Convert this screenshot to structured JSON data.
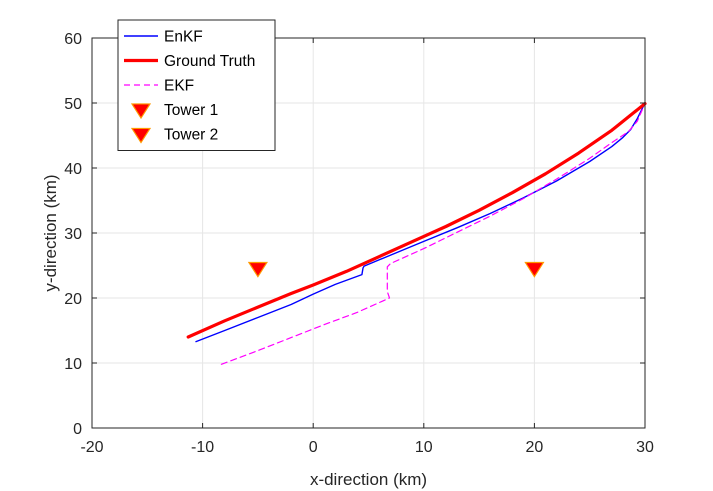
{
  "chart_data": {
    "type": "line",
    "xlabel": "x-direction (km)",
    "ylabel": "y-direction (km)",
    "xlim": [
      -20,
      30
    ],
    "ylim": [
      0,
      60
    ],
    "xticks": [
      -20,
      -10,
      0,
      10,
      20,
      30
    ],
    "yticks": [
      0,
      10,
      20,
      30,
      40,
      50,
      60
    ],
    "grid": true,
    "legend_position": "top-left",
    "series": [
      {
        "name": "EnKF",
        "color": "#0000ff",
        "style": "solid",
        "x": [
          -10.6,
          -8,
          -5,
          -2,
          0,
          2,
          4.4,
          4.5,
          4.6,
          7,
          10,
          13,
          16,
          19,
          22,
          25,
          27,
          28,
          28.7,
          29.3,
          30
        ],
        "y": [
          13.3,
          15.0,
          17.0,
          19.0,
          20.6,
          22.1,
          23.6,
          24.6,
          24.9,
          26.6,
          28.7,
          30.8,
          33.0,
          35.4,
          38.0,
          41.0,
          43.3,
          44.7,
          45.9,
          47.6,
          50.0
        ]
      },
      {
        "name": "Ground Truth",
        "color": "#ff0000",
        "style": "solid-thick",
        "x": [
          -11.3,
          -8,
          -5,
          -2,
          0,
          3,
          6,
          9,
          12,
          15,
          18,
          21,
          24,
          27,
          30
        ],
        "y": [
          14.0,
          16.5,
          18.6,
          20.7,
          22.0,
          24.1,
          26.4,
          28.7,
          31.0,
          33.5,
          36.2,
          39.1,
          42.3,
          45.8,
          49.9
        ]
      },
      {
        "name": "EKF",
        "color": "#ff00ff",
        "style": "dashed",
        "x": [
          -8.3,
          -5,
          -2,
          1,
          4,
          6.9,
          6.7,
          6.7,
          7.0,
          10,
          13,
          16,
          19,
          22,
          25,
          27,
          28.5,
          29.3,
          30
        ],
        "y": [
          9.8,
          11.9,
          13.9,
          15.9,
          17.8,
          20.0,
          21.0,
          24.8,
          25.3,
          27.6,
          30.1,
          32.6,
          35.3,
          38.3,
          41.5,
          43.9,
          45.6,
          47.2,
          49.9
        ]
      }
    ],
    "markers": [
      {
        "name": "Tower 1",
        "x": -5,
        "y": 24.6,
        "color": "#ff0000",
        "edge": "#ff9900",
        "shape": "triangle-down"
      },
      {
        "name": "Tower 2",
        "x": 20,
        "y": 24.6,
        "color": "#ff0000",
        "edge": "#ff9900",
        "shape": "triangle-down"
      }
    ]
  }
}
